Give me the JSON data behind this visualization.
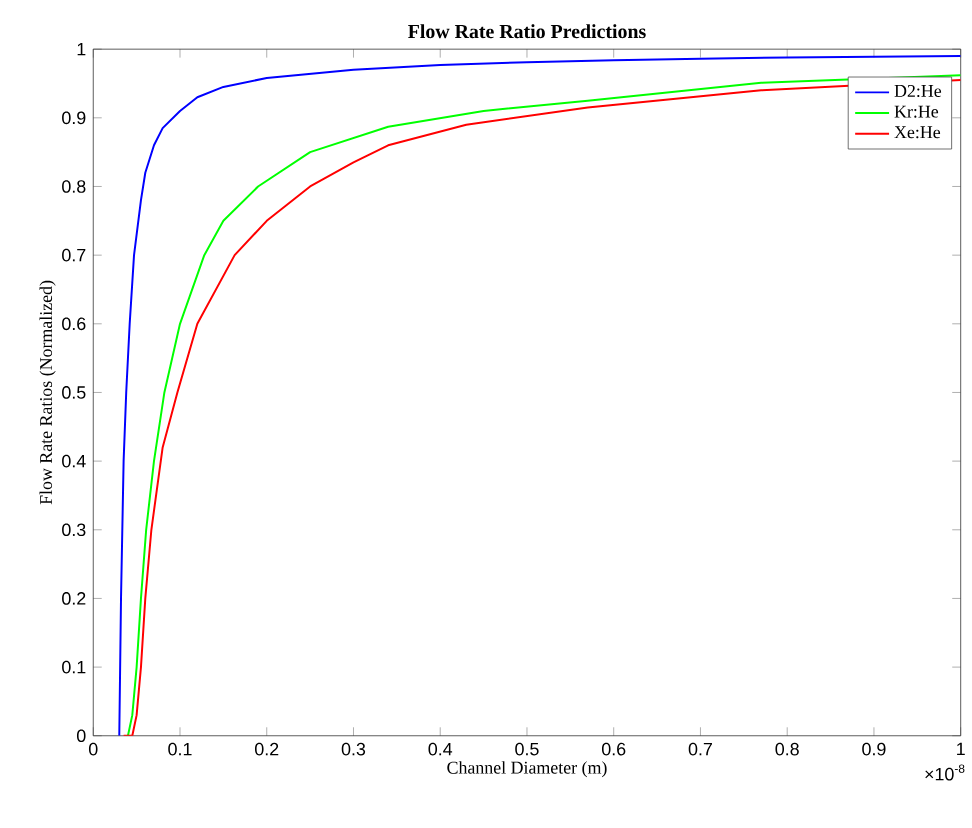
{
  "chart_data": {
    "type": "line",
    "title": "Flow Rate Ratio Predictions",
    "xlabel": "Channel Diameter (m)",
    "ylabel": "Flow Rate Ratios (Normalized)",
    "annotations": [
      "×10$^{-8}$"
    ],
    "xlim": [
      0,
      1
    ],
    "ylim": [
      0,
      1
    ],
    "xticks": [
      0,
      0.1,
      0.2,
      0.3,
      0.4,
      0.5,
      0.6,
      0.7,
      0.8,
      0.9,
      1
    ],
    "yticks": [
      0,
      0.1,
      0.2,
      0.3,
      0.4,
      0.5,
      0.6,
      0.7,
      0.8,
      0.9,
      1
    ],
    "grid": false,
    "legend": "top right",
    "marker": "none",
    "line_style": "solid",
    "series": [
      {
        "name": "D2:He",
        "color": "#0000ff",
        "x": [
          0.03,
          0.032,
          0.035,
          0.038,
          0.042,
          0.047,
          0.055,
          0.06,
          0.07,
          0.08,
          0.1,
          0.12,
          0.15,
          0.2,
          0.3,
          0.4,
          0.5,
          0.6,
          0.7,
          0.8,
          0.9,
          1.0
        ],
        "values": [
          0,
          0.2,
          0.4,
          0.5,
          0.6,
          0.7,
          0.78,
          0.82,
          0.86,
          0.885,
          0.91,
          0.93,
          0.945,
          0.958,
          0.97,
          0.977,
          0.981,
          0.984,
          0.986,
          0.988,
          0.989,
          0.99
        ]
      },
      {
        "name": "Kr:He",
        "color": "#00ff00",
        "x": [
          0.04,
          0.045,
          0.05,
          0.055,
          0.061,
          0.07,
          0.082,
          0.1,
          0.128,
          0.15,
          0.19,
          0.25,
          0.34,
          0.45,
          0.57,
          0.77,
          1.0
        ],
        "values": [
          0,
          0.03,
          0.1,
          0.2,
          0.3,
          0.4,
          0.5,
          0.6,
          0.7,
          0.75,
          0.8,
          0.85,
          0.887,
          0.91,
          0.925,
          0.951,
          0.962
        ]
      },
      {
        "name": "Xe:He",
        "color": "#ff0000",
        "x": [
          0.035,
          0.045,
          0.05,
          0.055,
          0.06,
          0.067,
          0.08,
          0.097,
          0.12,
          0.163,
          0.2,
          0.25,
          0.3,
          0.34,
          0.43,
          0.57,
          0.77,
          1.0
        ],
        "values": [
          0,
          0,
          0.03,
          0.1,
          0.2,
          0.3,
          0.42,
          0.5,
          0.6,
          0.7,
          0.75,
          0.8,
          0.835,
          0.86,
          0.89,
          0.915,
          0.94,
          0.955
        ]
      }
    ]
  }
}
